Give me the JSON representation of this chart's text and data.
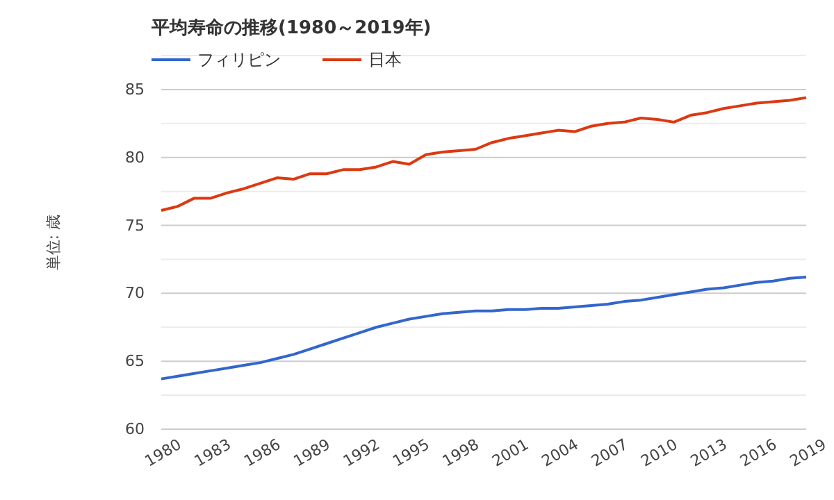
{
  "chart_data": {
    "type": "line",
    "title": "平均寿命の推移(1980～2019年)",
    "ylabel": "単位: 歳",
    "x": [
      1980,
      1981,
      1982,
      1983,
      1984,
      1985,
      1986,
      1987,
      1988,
      1989,
      1990,
      1991,
      1992,
      1993,
      1994,
      1995,
      1996,
      1997,
      1998,
      1999,
      2000,
      2001,
      2002,
      2003,
      2004,
      2005,
      2006,
      2007,
      2008,
      2009,
      2010,
      2011,
      2012,
      2013,
      2014,
      2015,
      2016,
      2017,
      2018,
      2019
    ],
    "series": [
      {
        "name": "フィリピン",
        "color": "#3366cc",
        "values": [
          63.7,
          63.9,
          64.1,
          64.3,
          64.5,
          64.7,
          64.9,
          65.2,
          65.5,
          65.9,
          66.3,
          66.7,
          67.1,
          67.5,
          67.8,
          68.1,
          68.3,
          68.5,
          68.6,
          68.7,
          68.7,
          68.8,
          68.8,
          68.9,
          68.9,
          69.0,
          69.1,
          69.2,
          69.4,
          69.5,
          69.7,
          69.9,
          70.1,
          70.3,
          70.4,
          70.6,
          70.8,
          70.9,
          71.1,
          71.2
        ]
      },
      {
        "name": "日本",
        "color": "#dc3912",
        "values": [
          76.1,
          76.4,
          77.0,
          77.0,
          77.4,
          77.7,
          78.1,
          78.5,
          78.4,
          78.8,
          78.8,
          79.1,
          79.1,
          79.3,
          79.7,
          79.5,
          80.2,
          80.4,
          80.5,
          80.6,
          81.1,
          81.4,
          81.6,
          81.8,
          82.0,
          81.9,
          82.3,
          82.5,
          82.6,
          82.9,
          82.8,
          82.6,
          83.1,
          83.3,
          83.6,
          83.8,
          84.0,
          84.1,
          84.2,
          84.4
        ]
      }
    ],
    "xlim": [
      1980,
      2019
    ],
    "xticks": [
      1980,
      1983,
      1986,
      1989,
      1992,
      1995,
      1998,
      2001,
      2004,
      2007,
      2010,
      2013,
      2016,
      2019
    ],
    "ylim": [
      60,
      87.5
    ],
    "yticks": [
      60,
      {
        "value": 62.5,
        "label": null
      },
      65,
      {
        "value": 67.5,
        "label": null
      },
      70,
      {
        "value": 72.5,
        "label": null
      },
      75,
      {
        "value": 77.5,
        "label": null
      },
      80,
      {
        "value": 82.5,
        "label": null
      },
      85,
      {
        "value": 87.5,
        "label": null
      }
    ],
    "grid": "y",
    "legend": "top left",
    "marker": "none",
    "line_style": "solid"
  }
}
